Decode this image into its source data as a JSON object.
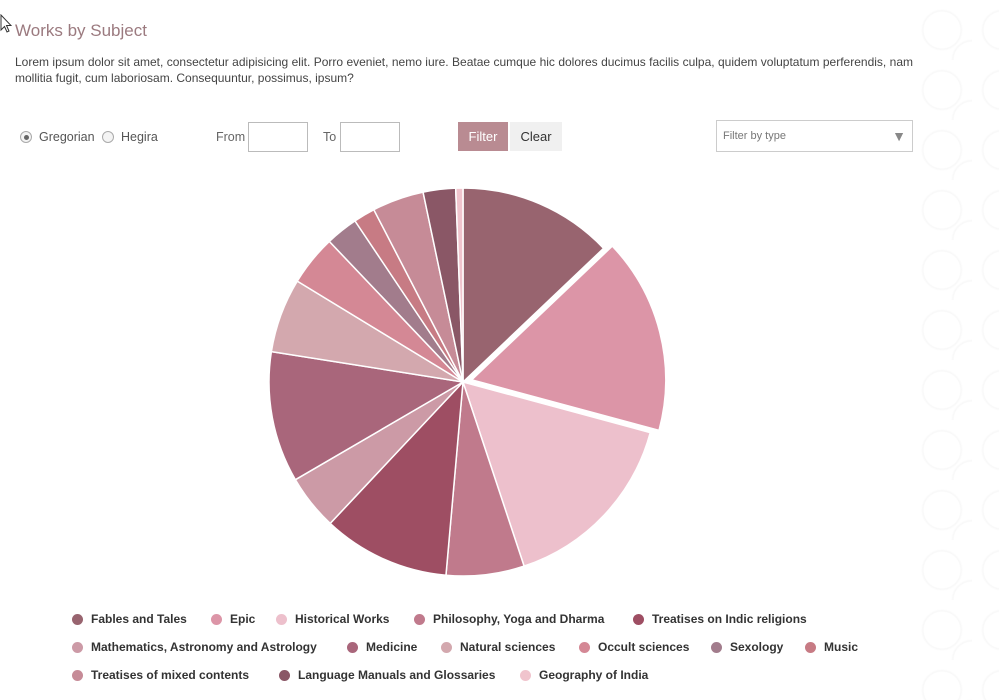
{
  "header": {
    "title": "Works by Subject",
    "description": "Lorem ipsum dolor sit amet, consectetur adipisicing elit. Porro eveniet, nemo iure. Beatae cumque hic dolores ducimus facilis culpa, quidem voluptatum perferendis, nam mollitia fugit, cum laboriosam. Consequuntur, possimus, ipsum?"
  },
  "controls": {
    "calendar_options": [
      {
        "label": "Gregorian",
        "selected": true
      },
      {
        "label": "Hegira",
        "selected": false
      }
    ],
    "from_label": "From",
    "from_value": "",
    "to_label": "To",
    "to_value": "",
    "filter_label": "Filter",
    "clear_label": "Clear",
    "type_select_placeholder": "Filter by type",
    "accent_color": "#b98b92"
  },
  "chart_data": {
    "type": "pie",
    "title": "",
    "legend_position": "bottom",
    "categories": [
      "Fables and Tales",
      "Epic",
      "Historical Works",
      "Philosophy, Yoga and Dharma",
      "Treatises on Indic religions",
      "Mathematics, Astronomy and Astrology",
      "Medicine",
      "Natural sciences",
      "Occult sciences",
      "Sexology",
      "Music",
      "Treatises of mixed contents",
      "Language Manuals and Glossaries",
      "Geography of India"
    ],
    "values": [
      12.9,
      16.3,
      15.7,
      6.5,
      10.6,
      4.6,
      10.9,
      6.2,
      4.2,
      2.7,
      1.8,
      4.3,
      2.7,
      0.6
    ],
    "colors": [
      "#98646f",
      "#dc95a7",
      "#edc0cc",
      "#c07a8c",
      "#9e4e63",
      "#cc9aa6",
      "#a9667b",
      "#d3a8ae",
      "#d48895",
      "#a27c8c",
      "#c77b84",
      "#c68b97",
      "#8a5766",
      "#f0c4cd"
    ],
    "exploded": [
      "Epic"
    ]
  }
}
